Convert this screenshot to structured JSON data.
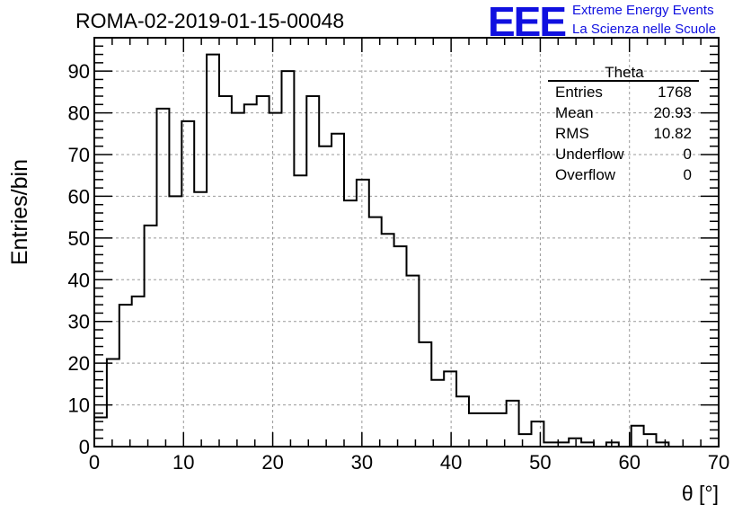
{
  "run_title": "ROMA-02-2019-01-15-00048",
  "logo": {
    "mark": "EEE",
    "line1": "Extreme Energy Events",
    "line2": "La Scienza nelle Scuole",
    "color": "#1010e0"
  },
  "stats": {
    "title": "Theta",
    "rows": [
      {
        "label": "Entries",
        "value": "1768"
      },
      {
        "label": "Mean",
        "value": "20.93"
      },
      {
        "label": "RMS",
        "value": "10.82"
      },
      {
        "label": "Underflow",
        "value": "0"
      },
      {
        "label": "Overflow",
        "value": "0"
      }
    ]
  },
  "chart_data": {
    "type": "bar",
    "histogram": true,
    "title": "ROMA-02-2019-01-15-00048",
    "xlabel": "θ [°]",
    "ylabel": "Entries/bin",
    "xlim": [
      0,
      70
    ],
    "ylim": [
      0,
      98
    ],
    "x_ticks": [
      0,
      10,
      20,
      30,
      40,
      50,
      60,
      70
    ],
    "y_ticks": [
      0,
      10,
      20,
      30,
      40,
      50,
      60,
      70,
      80,
      90
    ],
    "grid": true,
    "legend": "top-right stats box",
    "bin_width": 1.4,
    "bin_start": 0,
    "values": [
      7,
      21,
      34,
      36,
      53,
      81,
      60,
      78,
      61,
      94,
      84,
      80,
      82,
      84,
      80,
      90,
      65,
      84,
      72,
      75,
      59,
      64,
      55,
      51,
      48,
      41,
      25,
      16,
      18,
      12,
      8,
      8,
      8,
      11,
      3,
      6,
      1,
      1,
      2,
      1,
      0,
      1,
      0,
      5,
      3,
      1,
      0,
      0,
      0,
      0
    ],
    "line_color": "#000000",
    "grid_color": "#999999"
  }
}
